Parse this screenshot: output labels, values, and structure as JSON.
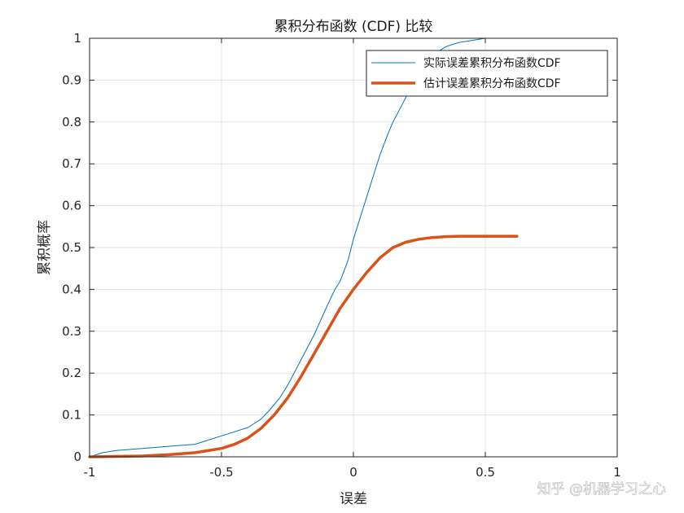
{
  "chart_data": {
    "type": "line",
    "title": "累积分布函数 (CDF) 比较",
    "xlabel": "误差",
    "ylabel": "累积概率",
    "xlim": [
      -1,
      1
    ],
    "ylim": [
      0,
      1
    ],
    "xticks": [
      -1,
      -0.5,
      0,
      0.5,
      1
    ],
    "xtick_labels": [
      "-1",
      "-0.5",
      "0",
      "0.5",
      "1"
    ],
    "yticks": [
      0,
      0.1,
      0.2,
      0.3,
      0.4,
      0.5,
      0.6,
      0.7,
      0.8,
      0.9,
      1
    ],
    "ytick_labels": [
      "0",
      "0.1",
      "0.2",
      "0.3",
      "0.4",
      "0.5",
      "0.6",
      "0.7",
      "0.8",
      "0.9",
      "1"
    ],
    "grid": true,
    "legend_position": "top-right",
    "series": [
      {
        "name": "实际误差累积分布函数CDF",
        "color": "#0072BD",
        "x": [
          -1.0,
          -0.95,
          -0.9,
          -0.8,
          -0.7,
          -0.6,
          -0.5,
          -0.45,
          -0.4,
          -0.35,
          -0.32,
          -0.28,
          -0.25,
          -0.2,
          -0.15,
          -0.1,
          -0.07,
          -0.05,
          -0.02,
          0.0,
          0.02,
          0.05,
          0.08,
          0.1,
          0.13,
          0.15,
          0.2,
          0.25,
          0.3,
          0.35,
          0.4,
          0.45,
          0.5,
          0.55,
          0.6
        ],
        "y": [
          0.0,
          0.01,
          0.015,
          0.02,
          0.025,
          0.03,
          0.05,
          0.06,
          0.07,
          0.09,
          0.11,
          0.14,
          0.17,
          0.23,
          0.29,
          0.36,
          0.4,
          0.42,
          0.47,
          0.52,
          0.56,
          0.62,
          0.68,
          0.72,
          0.77,
          0.8,
          0.86,
          0.92,
          0.96,
          0.98,
          0.99,
          0.995,
          1.0,
          1.0,
          1.0
        ]
      },
      {
        "name": "估计误差累积分布函数CDF",
        "color": "#D95319",
        "x": [
          -1.0,
          -0.9,
          -0.8,
          -0.7,
          -0.6,
          -0.5,
          -0.45,
          -0.4,
          -0.35,
          -0.3,
          -0.25,
          -0.2,
          -0.15,
          -0.1,
          -0.05,
          0.0,
          0.05,
          0.1,
          0.15,
          0.2,
          0.25,
          0.3,
          0.35,
          0.4,
          0.45,
          0.5,
          0.55,
          0.62
        ],
        "y": [
          0.0,
          0.001,
          0.002,
          0.005,
          0.01,
          0.02,
          0.03,
          0.045,
          0.068,
          0.1,
          0.14,
          0.19,
          0.245,
          0.3,
          0.355,
          0.4,
          0.44,
          0.475,
          0.5,
          0.513,
          0.52,
          0.524,
          0.526,
          0.527,
          0.527,
          0.527,
          0.527,
          0.527
        ]
      }
    ]
  },
  "watermark": "知乎 @机器学习之心"
}
